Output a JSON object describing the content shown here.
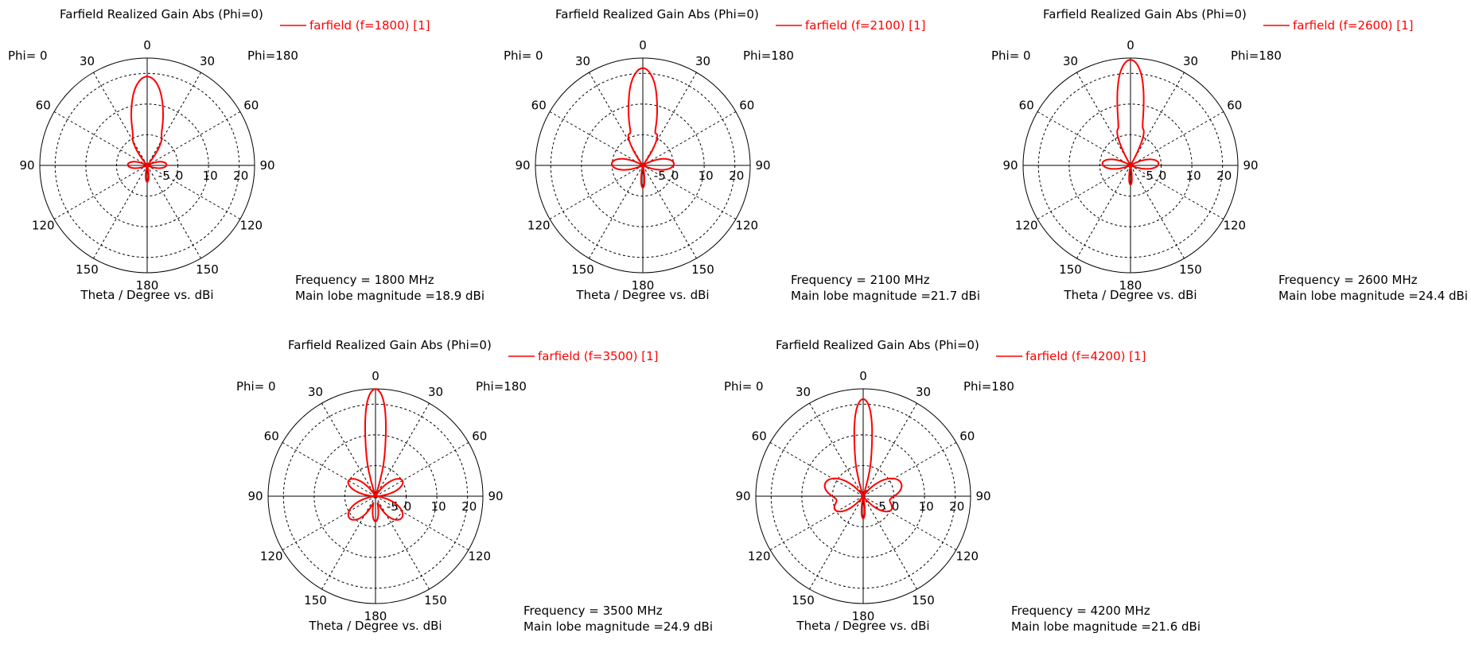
{
  "chart_data": [
    {
      "type": "polar-line",
      "title": "Farfield Realized Gain Abs (Phi=0)",
      "xlabel": "Theta / Degree vs. dBi",
      "phi_left": "Phi=  0",
      "phi_right": "Phi=180",
      "angle_ticks": [
        "0",
        "30",
        "60",
        "90",
        "120",
        "150",
        "180",
        "150",
        "120",
        "90",
        "60",
        "30"
      ],
      "radial_ticks": [
        "-5",
        "0",
        "10",
        "20"
      ],
      "rlim": [
        -10,
        25
      ],
      "grid": true,
      "legend_position": "top-right",
      "series": [
        {
          "name": "farfield (f=1800) [1]",
          "color": "#ff0000",
          "lobes": [
            {
              "theta": 0,
              "gain": 18.9,
              "width": 6
            },
            {
              "theta": 9,
              "gain": 9,
              "width": 4
            },
            {
              "theta": -9,
              "gain": 9,
              "width": 4
            },
            {
              "theta": 16,
              "gain": 5,
              "width": 4
            },
            {
              "theta": -16,
              "gain": 5,
              "width": 4
            },
            {
              "theta": 26,
              "gain": 0,
              "width": 6
            },
            {
              "theta": -26,
              "gain": 0,
              "width": 6
            },
            {
              "theta": 88,
              "gain": -4,
              "width": 14
            },
            {
              "theta": -88,
              "gain": -4,
              "width": 14
            },
            {
              "theta": 180,
              "gain": -5,
              "width": 8
            }
          ]
        }
      ],
      "info": {
        "frequency": "Frequency = 1800 MHz",
        "main_lobe": "Main lobe magnitude =",
        "main_lobe_value": "18.9 dBi"
      }
    },
    {
      "type": "polar-line",
      "title": "Farfield Realized Gain Abs (Phi=0)",
      "xlabel": "Theta / Degree vs. dBi",
      "phi_left": "Phi=  0",
      "phi_right": "Phi=180",
      "angle_ticks": [
        "0",
        "30",
        "60",
        "90",
        "120",
        "150",
        "180",
        "150",
        "120",
        "90",
        "60",
        "30"
      ],
      "radial_ticks": [
        "-5",
        "0",
        "10",
        "20"
      ],
      "rlim": [
        -10,
        25
      ],
      "grid": true,
      "legend_position": "top-right",
      "series": [
        {
          "name": "farfield (f=2100) [1]",
          "color": "#ff0000",
          "lobes": [
            {
              "theta": 0,
              "gain": 21.7,
              "width": 5
            },
            {
              "theta": 8,
              "gain": 10,
              "width": 3
            },
            {
              "theta": -8,
              "gain": 10,
              "width": 3
            },
            {
              "theta": 14,
              "gain": 6,
              "width": 3
            },
            {
              "theta": -14,
              "gain": 6,
              "width": 3
            },
            {
              "theta": 24,
              "gain": 1,
              "width": 5
            },
            {
              "theta": -24,
              "gain": 1,
              "width": 5
            },
            {
              "theta": 87,
              "gain": 0,
              "width": 12
            },
            {
              "theta": -87,
              "gain": 0,
              "width": 12
            },
            {
              "theta": 180,
              "gain": -3,
              "width": 6
            }
          ]
        }
      ],
      "info": {
        "frequency": "Frequency = 2100 MHz",
        "main_lobe": "Main lobe magnitude =",
        "main_lobe_value": "21.7 dBi"
      }
    },
    {
      "type": "polar-line",
      "title": "Farfield Realized Gain Abs (Phi=0)",
      "xlabel": "Theta / Degree vs. dBi",
      "phi_left": "Phi=  0",
      "phi_right": "Phi=180",
      "angle_ticks": [
        "0",
        "30",
        "60",
        "90",
        "120",
        "150",
        "180",
        "150",
        "120",
        "90",
        "60",
        "30"
      ],
      "radial_ticks": [
        "-5",
        "0",
        "10",
        "20"
      ],
      "rlim": [
        -10,
        25
      ],
      "grid": true,
      "legend_position": "top-right",
      "series": [
        {
          "name": "farfield (f=2600) [1]",
          "color": "#ff0000",
          "lobes": [
            {
              "theta": 0,
              "gain": 24.4,
              "width": 4.5
            },
            {
              "theta": 6,
              "gain": 8,
              "width": 2.5
            },
            {
              "theta": -6,
              "gain": 8,
              "width": 2.5
            },
            {
              "theta": 12,
              "gain": 5,
              "width": 3
            },
            {
              "theta": -12,
              "gain": 5,
              "width": 3
            },
            {
              "theta": 20,
              "gain": 2,
              "width": 4
            },
            {
              "theta": -20,
              "gain": 2,
              "width": 4
            },
            {
              "theta": 86,
              "gain": -1,
              "width": 12
            },
            {
              "theta": -86,
              "gain": -1,
              "width": 12
            },
            {
              "theta": 180,
              "gain": -4,
              "width": 6
            }
          ]
        }
      ],
      "info": {
        "frequency": "Frequency = 2600 MHz",
        "main_lobe": "Main lobe magnitude =",
        "main_lobe_value": "24.4 dBi"
      }
    },
    {
      "type": "polar-line",
      "title": "Farfield Realized Gain Abs (Phi=0)",
      "xlabel": "Theta / Degree vs. dBi",
      "phi_left": "Phi=  0",
      "phi_right": "Phi=180",
      "angle_ticks": [
        "0",
        "30",
        "60",
        "90",
        "120",
        "150",
        "180",
        "150",
        "120",
        "90",
        "60",
        "30"
      ],
      "radial_ticks": [
        "-5",
        "0",
        "10",
        "20"
      ],
      "rlim": [
        -10,
        25
      ],
      "grid": true,
      "legend_position": "top-right",
      "series": [
        {
          "name": "farfield (f=3500) [1]",
          "color": "#ff0000",
          "lobes": [
            {
              "theta": 0,
              "gain": 24.9,
              "width": 3.5
            },
            {
              "theta": 4,
              "gain": 10,
              "width": 2
            },
            {
              "theta": -4,
              "gain": 10,
              "width": 2
            },
            {
              "theta": 10,
              "gain": 4,
              "width": 3
            },
            {
              "theta": -10,
              "gain": 4,
              "width": 3
            },
            {
              "theta": 60,
              "gain": 0,
              "width": 12
            },
            {
              "theta": -60,
              "gain": 0,
              "width": 12
            },
            {
              "theta": 130,
              "gain": 1,
              "width": 14
            },
            {
              "theta": -130,
              "gain": 1,
              "width": 14
            },
            {
              "theta": 180,
              "gain": -2,
              "width": 8
            }
          ]
        }
      ],
      "info": {
        "frequency": "Frequency = 3500 MHz",
        "main_lobe": "Main lobe magnitude =",
        "main_lobe_value": "24.9 dBi"
      }
    },
    {
      "type": "polar-line",
      "title": "Farfield Realized Gain Abs (Phi=0)",
      "xlabel": "Theta / Degree vs. dBi",
      "phi_left": "Phi=  0",
      "phi_right": "Phi=180",
      "angle_ticks": [
        "0",
        "30",
        "60",
        "90",
        "120",
        "150",
        "180",
        "150",
        "120",
        "90",
        "60",
        "30"
      ],
      "radial_ticks": [
        "-5",
        "0",
        "10",
        "20"
      ],
      "rlim": [
        -10,
        25
      ],
      "grid": true,
      "legend_position": "top-right",
      "series": [
        {
          "name": "farfield (f=4200) [1]",
          "color": "#ff0000",
          "lobes": [
            {
              "theta": 0,
              "gain": 21.6,
              "width": 3.5
            },
            {
              "theta": 4,
              "gain": 6,
              "width": 2
            },
            {
              "theta": -4,
              "gain": 6,
              "width": 2
            },
            {
              "theta": 10,
              "gain": 2,
              "width": 3
            },
            {
              "theta": -10,
              "gain": 2,
              "width": 3
            },
            {
              "theta": 72,
              "gain": 3,
              "width": 14
            },
            {
              "theta": -72,
              "gain": 3,
              "width": 14
            },
            {
              "theta": 115,
              "gain": 0,
              "width": 12
            },
            {
              "theta": -115,
              "gain": 0,
              "width": 12
            },
            {
              "theta": 180,
              "gain": -3,
              "width": 6
            }
          ]
        }
      ],
      "info": {
        "frequency": "Frequency = 4200 MHz",
        "main_lobe": "Main lobe magnitude =",
        "main_lobe_value": "21.6 dBi"
      }
    }
  ]
}
